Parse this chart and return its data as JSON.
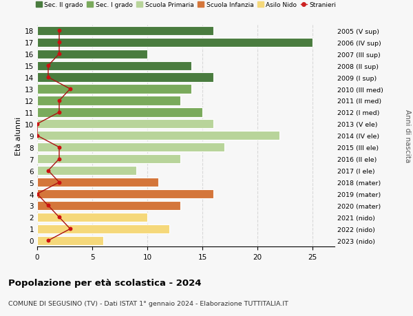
{
  "ages": [
    18,
    17,
    16,
    15,
    14,
    13,
    12,
    11,
    10,
    9,
    8,
    7,
    6,
    5,
    4,
    3,
    2,
    1,
    0
  ],
  "right_labels": [
    "2005 (V sup)",
    "2006 (IV sup)",
    "2007 (III sup)",
    "2008 (II sup)",
    "2009 (I sup)",
    "2010 (III med)",
    "2011 (II med)",
    "2012 (I med)",
    "2013 (V ele)",
    "2014 (IV ele)",
    "2015 (III ele)",
    "2016 (II ele)",
    "2017 (I ele)",
    "2018 (mater)",
    "2019 (mater)",
    "2020 (mater)",
    "2021 (nido)",
    "2022 (nido)",
    "2023 (nido)"
  ],
  "bar_values": [
    16,
    25,
    10,
    14,
    16,
    14,
    13,
    15,
    16,
    22,
    17,
    13,
    9,
    11,
    16,
    13,
    10,
    12,
    6
  ],
  "bar_colors": [
    "#4a7c3f",
    "#4a7c3f",
    "#4a7c3f",
    "#4a7c3f",
    "#4a7c3f",
    "#7aaa5c",
    "#7aaa5c",
    "#7aaa5c",
    "#b8d49a",
    "#b8d49a",
    "#b8d49a",
    "#b8d49a",
    "#b8d49a",
    "#d4763b",
    "#d4763b",
    "#d4763b",
    "#f5d87a",
    "#f5d87a",
    "#f5d87a"
  ],
  "stranieri_x": [
    2,
    2,
    2,
    1,
    1,
    3,
    2,
    2,
    0,
    0,
    2,
    2,
    1,
    2,
    0,
    1,
    2,
    3,
    1
  ],
  "legend_labels": [
    "Sec. II grado",
    "Sec. I grado",
    "Scuola Primaria",
    "Scuola Infanzia",
    "Asilo Nido",
    "Stranieri"
  ],
  "legend_colors": [
    "#4a7c3f",
    "#7aaa5c",
    "#b8d49a",
    "#d4763b",
    "#f5d87a",
    "#cc2222"
  ],
  "title": "Popolazione per età scolastica - 2024",
  "subtitle": "COMUNE DI SEGUSINO (TV) - Dati ISTAT 1° gennaio 2024 - Elaborazione TUTTITALIA.IT",
  "ylabel": "Età alunni",
  "right_ylabel": "Anni di nascita",
  "xlim_max": 27,
  "xticks": [
    0,
    5,
    10,
    15,
    20,
    25
  ],
  "bg_color": "#f7f7f7",
  "bar_height": 0.78
}
